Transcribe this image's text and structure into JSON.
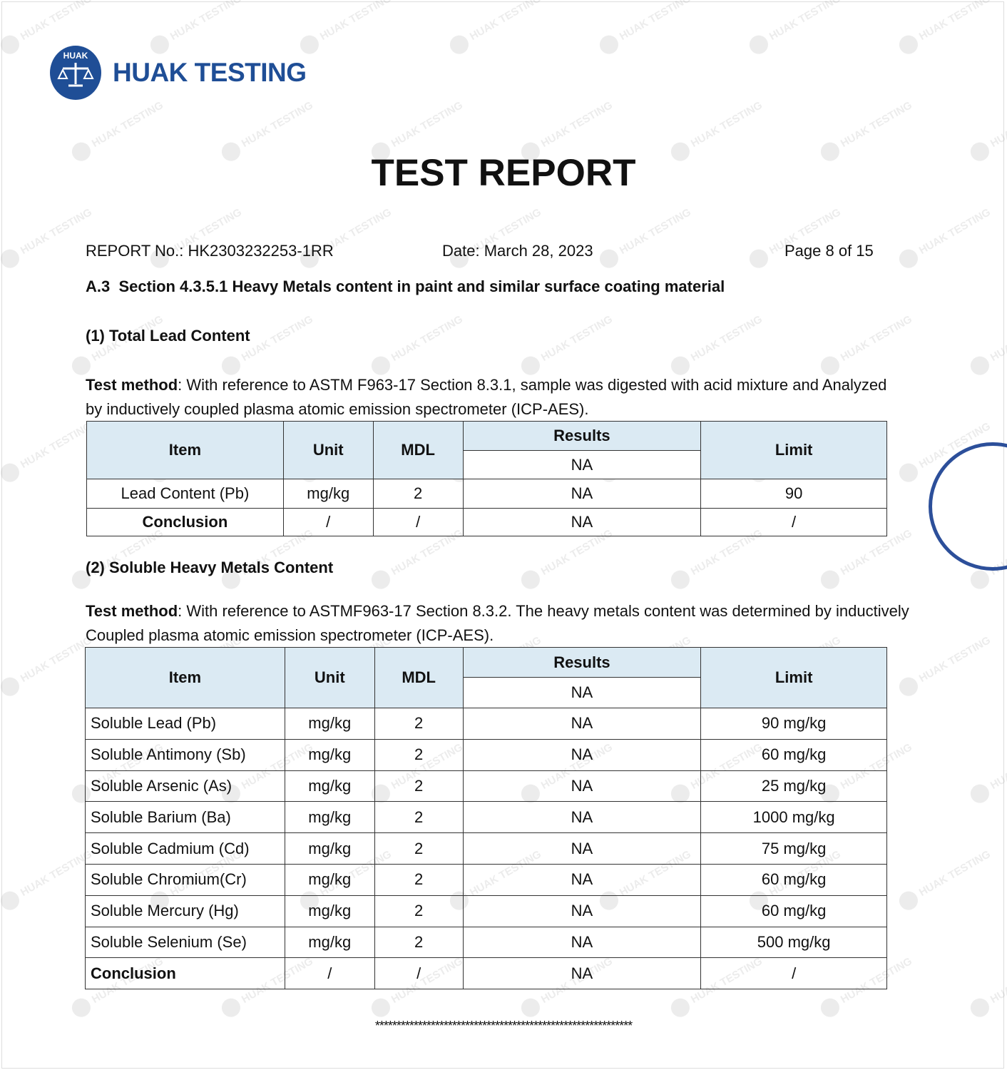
{
  "watermark": "HUAK TESTING",
  "logo": {
    "seal_text": "HUAK",
    "name": "HUAK TESTING",
    "color": "#1f4e96"
  },
  "title": "TEST REPORT",
  "meta": {
    "report_no": "REPORT No.: HK2303232253-1RR",
    "date": "Date: March 28, 2023",
    "page": "Page 8 of 15"
  },
  "section": {
    "number": "A.3",
    "title": "Section 4.3.5.1 Heavy Metals content in paint and similar surface coating material"
  },
  "part1": {
    "heading": "(1) Total Lead Content",
    "method_label": "Test method",
    "method_text": ": With reference to ASTM F963-17 Section 8.3.1, sample was digested with acid mixture and Analyzed by inductively coupled plasma atomic emission spectrometer (ICP-AES).",
    "headers": {
      "item": "Item",
      "unit": "Unit",
      "mdl": "MDL",
      "results": "Results",
      "result_sub": "NA",
      "limit": "Limit"
    },
    "rows": [
      {
        "item": "Lead Content (Pb)",
        "unit": "mg/kg",
        "mdl": "2",
        "result": "NA",
        "limit": "90"
      }
    ],
    "conclusion": {
      "item": "Conclusion",
      "unit": "/",
      "mdl": "/",
      "result": "NA",
      "limit": "/"
    }
  },
  "part2": {
    "heading": "(2) Soluble Heavy Metals Content",
    "method_label": "Test method",
    "method_text": ": With reference to ASTMF963-17 Section 8.3.2. The heavy metals content was determined by inductively Coupled plasma atomic emission spectrometer (ICP-AES).",
    "headers": {
      "item": "Item",
      "unit": "Unit",
      "mdl": "MDL",
      "results": "Results",
      "result_sub": "NA",
      "limit": "Limit"
    },
    "rows": [
      {
        "item": "Soluble Lead (Pb)",
        "unit": "mg/kg",
        "mdl": "2",
        "result": "NA",
        "limit": "90 mg/kg"
      },
      {
        "item": "Soluble Antimony (Sb)",
        "unit": "mg/kg",
        "mdl": "2",
        "result": "NA",
        "limit": "60 mg/kg"
      },
      {
        "item": "Soluble Arsenic (As)",
        "unit": "mg/kg",
        "mdl": "2",
        "result": "NA",
        "limit": "25 mg/kg"
      },
      {
        "item": "Soluble Barium (Ba)",
        "unit": "mg/kg",
        "mdl": "2",
        "result": "NA",
        "limit": "1000 mg/kg"
      },
      {
        "item": "Soluble Cadmium (Cd)",
        "unit": "mg/kg",
        "mdl": "2",
        "result": "NA",
        "limit": "75 mg/kg"
      },
      {
        "item": "Soluble Chromium(Cr)",
        "unit": "mg/kg",
        "mdl": "2",
        "result": "NA",
        "limit": "60 mg/kg"
      },
      {
        "item": "Soluble Mercury (Hg)",
        "unit": "mg/kg",
        "mdl": "2",
        "result": "NA",
        "limit": "60 mg/kg"
      },
      {
        "item": "Soluble Selenium (Se)",
        "unit": "mg/kg",
        "mdl": "2",
        "result": "NA",
        "limit": "500 mg/kg"
      }
    ],
    "conclusion": {
      "item": "Conclusion",
      "unit": "/",
      "mdl": "/",
      "result": "NA",
      "limit": "/"
    }
  },
  "end_marker": "************************************************************"
}
